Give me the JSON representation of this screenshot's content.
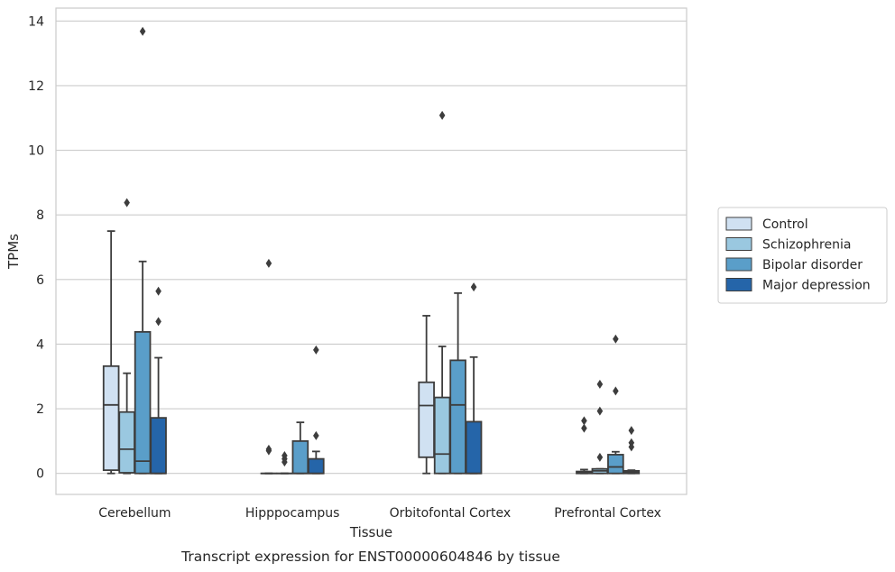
{
  "chart_data": {
    "type": "boxplot",
    "title": "Transcript expression for ENST00000604846 by tissue",
    "xlabel": "Tissue",
    "ylabel": "TPMs",
    "ylim": [
      -0.65,
      14.4
    ],
    "yticks": [
      0,
      2,
      4,
      6,
      8,
      10,
      12,
      14
    ],
    "grid": "horizontal",
    "legend_position": "right",
    "categories": [
      "Cerebellum",
      "Hipppocampus",
      "Orbitofontal Cortex",
      "Prefrontal Cortex"
    ],
    "series": [
      {
        "name": "Control",
        "color": "#d0e1f2",
        "boxes": [
          {
            "min": 0.0,
            "q1": 0.1,
            "median": 2.12,
            "q3": 3.32,
            "max": 7.5,
            "outliers": []
          },
          {
            "min": 0.0,
            "q1": 0.0,
            "median": 0.0,
            "q3": 0.0,
            "max": 0.0,
            "outliers": [
              6.5,
              0.7,
              0.75
            ]
          },
          {
            "min": 0.0,
            "q1": 0.5,
            "median": 2.1,
            "q3": 2.82,
            "max": 4.88,
            "outliers": []
          },
          {
            "min": 0.0,
            "q1": 0.0,
            "median": 0.02,
            "q3": 0.06,
            "max": 0.12,
            "outliers": [
              1.63,
              1.4
            ]
          }
        ]
      },
      {
        "name": "Schizophrenia",
        "color": "#9ac8e0",
        "boxes": [
          {
            "min": 0.0,
            "q1": 0.02,
            "median": 0.75,
            "q3": 1.9,
            "max": 3.1,
            "outliers": [
              8.38
            ]
          },
          {
            "min": 0.0,
            "q1": 0.0,
            "median": 0.0,
            "q3": 0.0,
            "max": 0.0,
            "outliers": [
              0.55,
              0.45,
              0.35
            ]
          },
          {
            "min": 0.0,
            "q1": 0.0,
            "median": 0.6,
            "q3": 2.35,
            "max": 3.93,
            "outliers": [
              11.08
            ]
          },
          {
            "min": 0.0,
            "q1": 0.0,
            "median": 0.08,
            "q3": 0.14,
            "max": 0.14,
            "outliers": [
              2.76,
              1.93,
              0.5
            ]
          }
        ]
      },
      {
        "name": "Bipolar disorder",
        "color": "#5a9ec9",
        "boxes": [
          {
            "min": 0.0,
            "q1": 0.0,
            "median": 0.38,
            "q3": 4.38,
            "max": 6.56,
            "outliers": [
              13.68
            ]
          },
          {
            "min": 0.0,
            "q1": 0.0,
            "median": 0.0,
            "q3": 1.0,
            "max": 1.58,
            "outliers": []
          },
          {
            "min": 0.0,
            "q1": 0.0,
            "median": 2.12,
            "q3": 3.5,
            "max": 5.58,
            "outliers": []
          },
          {
            "min": 0.0,
            "q1": 0.0,
            "median": 0.2,
            "q3": 0.58,
            "max": 0.67,
            "outliers": [
              4.16,
              2.55
            ]
          }
        ]
      },
      {
        "name": "Major depression",
        "color": "#2565a9",
        "boxes": [
          {
            "min": 0.0,
            "q1": 0.0,
            "median": 0.0,
            "q3": 1.72,
            "max": 3.58,
            "outliers": [
              5.64,
              4.7
            ]
          },
          {
            "min": 0.0,
            "q1": 0.0,
            "median": 0.0,
            "q3": 0.45,
            "max": 0.68,
            "outliers": [
              3.82,
              1.17
            ]
          },
          {
            "min": 0.0,
            "q1": 0.0,
            "median": 0.0,
            "q3": 1.6,
            "max": 3.6,
            "outliers": [
              5.77
            ]
          },
          {
            "min": 0.0,
            "q1": 0.0,
            "median": 0.04,
            "q3": 0.08,
            "max": 0.1,
            "outliers": [
              1.33,
              0.95,
              0.82
            ]
          }
        ]
      }
    ]
  }
}
